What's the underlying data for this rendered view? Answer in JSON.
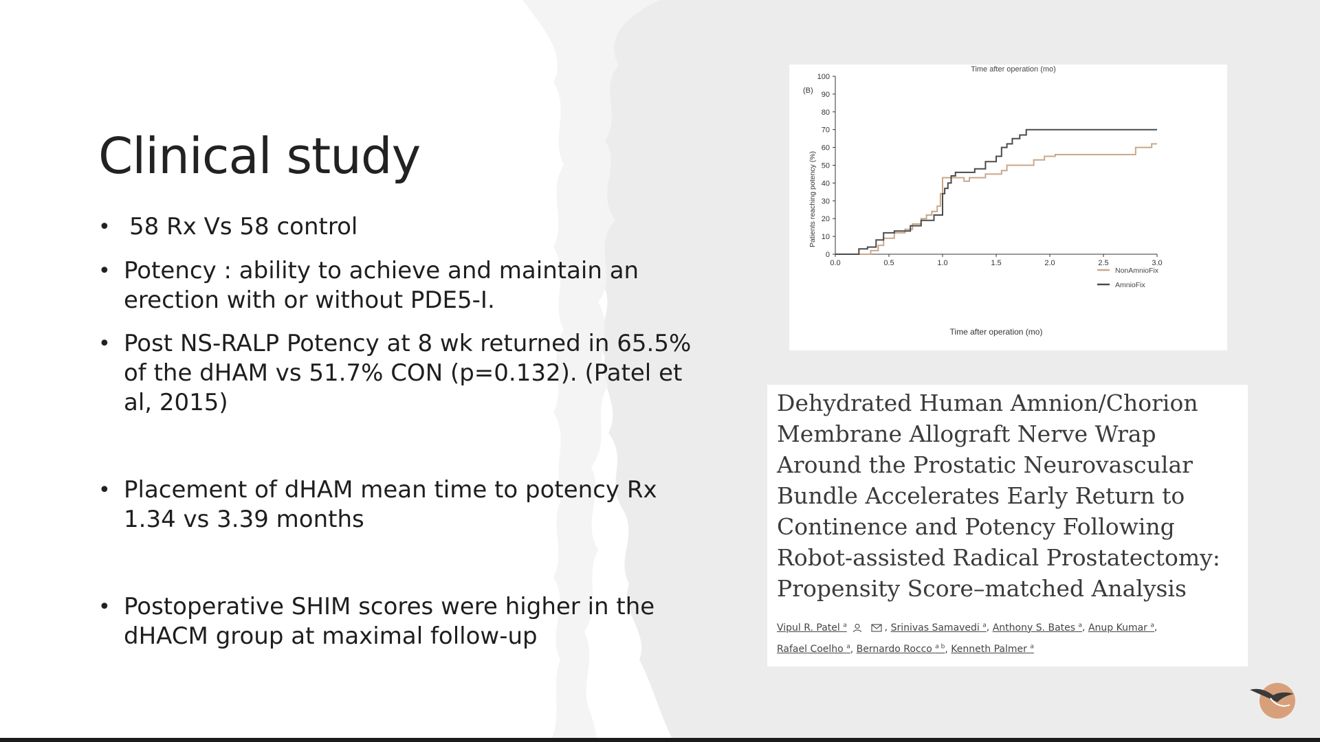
{
  "slide": {
    "title": "Clinical study",
    "bullets": [
      "58 Rx Vs 58 control",
      "Potency :  ability to achieve and maintain an erection with or without PDE5-I.",
      "Post NS-RALP Potency at 8 wk returned in 65.5% of the dHAM vs 51.7% CON (p=0.132). (Patel et al, 2015)",
      "Placement of dHAM mean time to potency Rx 1.34 vs 3.39 months",
      "Postoperative SHIM scores were higher in the dHACM group at maximal follow-up"
    ]
  },
  "chart_data": {
    "type": "line",
    "panel_label": "(B)",
    "top_caption": "Time after operation (mo)",
    "xlabel": "Time after operation (mo)",
    "ylabel": "Patients reaching potency (%)",
    "xlim": [
      0,
      3.0
    ],
    "ylim": [
      0,
      100
    ],
    "x_ticks": [
      "0.0",
      "0.5",
      "1.0",
      "1.5",
      "2.0",
      "2.5",
      "3.0"
    ],
    "y_ticks": [
      "0",
      "10",
      "20",
      "30",
      "40",
      "50",
      "60",
      "70",
      "80",
      "90",
      "100"
    ],
    "legend_position": "right",
    "step": true,
    "series": [
      {
        "name": "NonAmnioFix",
        "color": "#c9a789",
        "points": [
          [
            0,
            0
          ],
          [
            0.33,
            0
          ],
          [
            0.33,
            2
          ],
          [
            0.4,
            2
          ],
          [
            0.4,
            5
          ],
          [
            0.45,
            5
          ],
          [
            0.45,
            9
          ],
          [
            0.55,
            9
          ],
          [
            0.55,
            12
          ],
          [
            0.65,
            12
          ],
          [
            0.65,
            14
          ],
          [
            0.72,
            14
          ],
          [
            0.72,
            17
          ],
          [
            0.8,
            17
          ],
          [
            0.8,
            20
          ],
          [
            0.85,
            20
          ],
          [
            0.85,
            22
          ],
          [
            0.9,
            22
          ],
          [
            0.9,
            24
          ],
          [
            0.95,
            24
          ],
          [
            0.95,
            27
          ],
          [
            0.98,
            27
          ],
          [
            0.98,
            34
          ],
          [
            1.0,
            34
          ],
          [
            1.0,
            43
          ],
          [
            1.2,
            43
          ],
          [
            1.2,
            41
          ],
          [
            1.25,
            41
          ],
          [
            1.25,
            43
          ],
          [
            1.4,
            43
          ],
          [
            1.4,
            45
          ],
          [
            1.55,
            45
          ],
          [
            1.55,
            47
          ],
          [
            1.6,
            47
          ],
          [
            1.6,
            50
          ],
          [
            1.85,
            50
          ],
          [
            1.85,
            53
          ],
          [
            1.95,
            53
          ],
          [
            1.95,
            55
          ],
          [
            2.05,
            55
          ],
          [
            2.05,
            56
          ],
          [
            2.8,
            56
          ],
          [
            2.8,
            60
          ],
          [
            2.95,
            60
          ],
          [
            2.95,
            62
          ],
          [
            3.0,
            62
          ]
        ]
      },
      {
        "name": "AmnioFix",
        "color": "#4a4a4a",
        "points": [
          [
            0,
            0
          ],
          [
            0.22,
            0
          ],
          [
            0.22,
            3
          ],
          [
            0.3,
            3
          ],
          [
            0.3,
            4
          ],
          [
            0.38,
            4
          ],
          [
            0.38,
            8
          ],
          [
            0.45,
            8
          ],
          [
            0.45,
            12
          ],
          [
            0.55,
            12
          ],
          [
            0.55,
            13
          ],
          [
            0.7,
            13
          ],
          [
            0.7,
            16
          ],
          [
            0.8,
            16
          ],
          [
            0.8,
            19
          ],
          [
            0.92,
            19
          ],
          [
            0.92,
            22
          ],
          [
            1.0,
            22
          ],
          [
            1.0,
            34
          ],
          [
            1.02,
            34
          ],
          [
            1.02,
            37
          ],
          [
            1.05,
            37
          ],
          [
            1.05,
            40
          ],
          [
            1.08,
            40
          ],
          [
            1.08,
            44
          ],
          [
            1.12,
            44
          ],
          [
            1.12,
            46
          ],
          [
            1.3,
            46
          ],
          [
            1.3,
            48
          ],
          [
            1.4,
            48
          ],
          [
            1.4,
            52
          ],
          [
            1.5,
            52
          ],
          [
            1.5,
            55
          ],
          [
            1.55,
            55
          ],
          [
            1.55,
            60
          ],
          [
            1.6,
            60
          ],
          [
            1.6,
            62
          ],
          [
            1.65,
            62
          ],
          [
            1.65,
            65
          ],
          [
            1.72,
            65
          ],
          [
            1.72,
            67
          ],
          [
            1.78,
            67
          ],
          [
            1.78,
            70
          ],
          [
            3.0,
            70
          ]
        ]
      }
    ]
  },
  "paper": {
    "title": "Dehydrated Human Amnion/Chorion Membrane Allograft Nerve Wrap Around the Prostatic Neurovascular Bundle Accelerates Early Return to Continence and Potency Following Robot-assisted Radical Prostatectomy: Propensity Score–matched Analysis",
    "authors": [
      {
        "name": "Vipul R. Patel",
        "sup": "a"
      },
      {
        "name": "Srinivas Samavedi",
        "sup": "a"
      },
      {
        "name": "Anthony S. Bates",
        "sup": "a"
      },
      {
        "name": "Anup Kumar",
        "sup": "a"
      },
      {
        "name": "Rafael Coelho",
        "sup": "a"
      },
      {
        "name": "Bernardo Rocco",
        "sup": "a b"
      },
      {
        "name": "Kenneth Palmer",
        "sup": "a"
      }
    ]
  },
  "colors": {
    "title": "#222222",
    "text": "#1e1e1e",
    "paper_title": "#3b3b3b",
    "brush_gray": "#ececec"
  }
}
